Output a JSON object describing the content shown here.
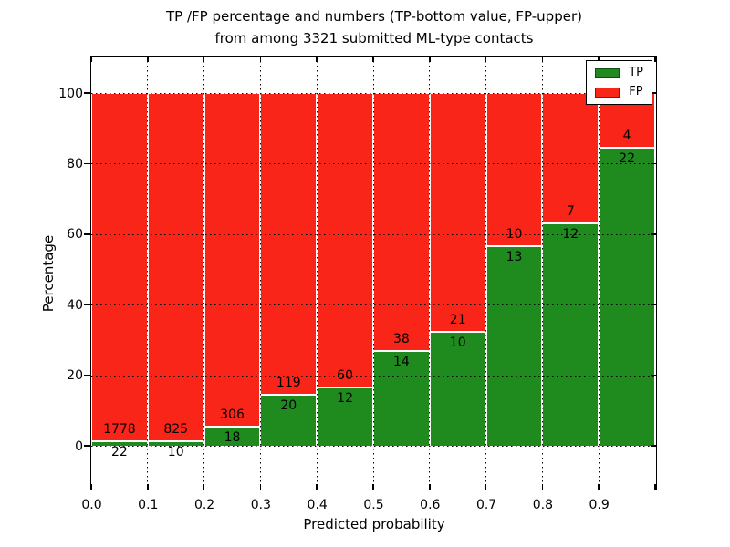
{
  "chart_data": {
    "type": "bar",
    "stacked": true,
    "normalized": "percent",
    "title": "TP /FP percentage and numbers (TP-bottom value, FP-upper) from among 3321 submitted ML-type contacts",
    "title_line1": "TP /FP percentage and numbers (TP-bottom value, FP-upper)",
    "title_line2": "from among 3321 submitted ML-type contacts",
    "xlabel": "Predicted probability",
    "ylabel": "Percentage",
    "total_submitted": 3321,
    "bin_edges": [
      0.0,
      0.1,
      0.2,
      0.3,
      0.4,
      0.5,
      0.6,
      0.7,
      0.8,
      0.9,
      1.0
    ],
    "x_ticks": [
      "0.0",
      "0.1",
      "0.2",
      "0.3",
      "0.4",
      "0.5",
      "0.6",
      "0.7",
      "0.8",
      "0.9"
    ],
    "y_ticks": [
      0,
      20,
      40,
      60,
      80,
      100
    ],
    "xlim": [
      0.0,
      1.0
    ],
    "ylim": [
      -12.7,
      110.6
    ],
    "grid": "dotted",
    "series": [
      {
        "name": "TP",
        "color": "#1f8b1f",
        "values": [
          22,
          10,
          18,
          20,
          12,
          14,
          10,
          13,
          12,
          22
        ]
      },
      {
        "name": "FP",
        "color": "#f92519",
        "values": [
          1778,
          825,
          306,
          119,
          60,
          38,
          21,
          10,
          7,
          4
        ]
      }
    ],
    "tp_percent": [
      1.2,
      1.2,
      5.6,
      14.4,
      16.7,
      26.9,
      32.3,
      56.5,
      63.2,
      84.6
    ],
    "legend": {
      "position": "upper right",
      "entries": [
        "TP",
        "FP"
      ]
    }
  }
}
